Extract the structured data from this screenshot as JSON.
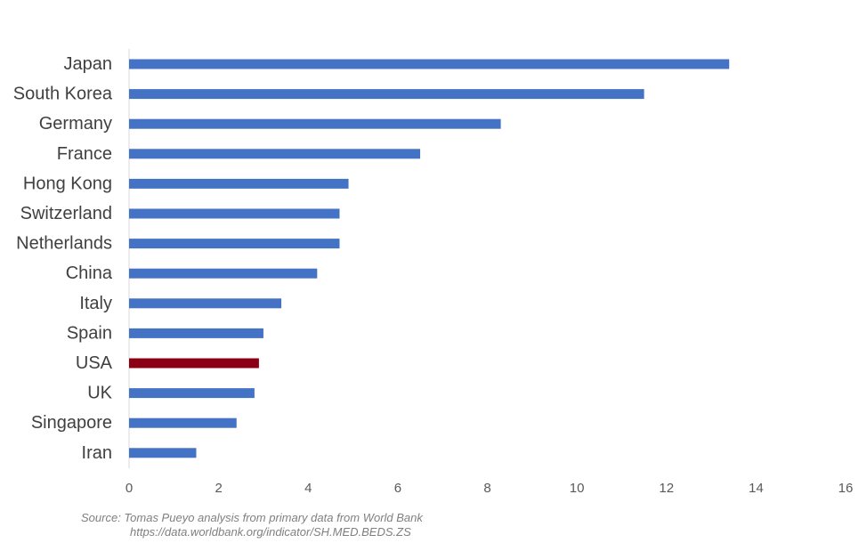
{
  "chart_data": {
    "type": "bar",
    "orientation": "horizontal",
    "title": "",
    "xlabel": "",
    "ylabel": "",
    "categories": [
      "Japan",
      "South Korea",
      "Germany",
      "France",
      "Hong Kong",
      "Switzerland",
      "Netherlands",
      "China",
      "Italy",
      "Spain",
      "USA",
      "UK",
      "Singapore",
      "Iran"
    ],
    "values": [
      13.4,
      11.5,
      8.3,
      6.5,
      4.9,
      4.7,
      4.7,
      4.2,
      3.4,
      3.0,
      2.9,
      2.8,
      2.4,
      1.5
    ],
    "xlim": [
      0,
      16
    ],
    "xticks": [
      0,
      2,
      4,
      6,
      8,
      10,
      12,
      14,
      16
    ],
    "grid": false,
    "legend": "none",
    "bar_color": "#4472C4",
    "highlight": {
      "category": "USA",
      "color": "#8B0015"
    }
  },
  "source": {
    "line1": "Source: Tomas Pueyo analysis from primary data from World Bank",
    "line2": "https://data.worldbank.org/indicator/SH.MED.BEDS.ZS"
  }
}
